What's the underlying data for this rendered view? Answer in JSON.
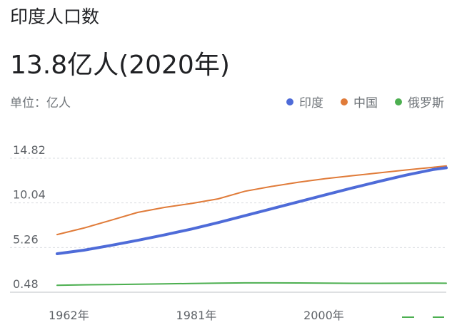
{
  "title": "印度人口数",
  "headline": "13.8亿人(2020年)",
  "unit_label": "单位：亿人",
  "chart_data": {
    "type": "line",
    "x": [
      1962,
      1966,
      1970,
      1974,
      1978,
      1982,
      1986,
      1990,
      1994,
      1998,
      2002,
      2006,
      2010,
      2014,
      2018,
      2020
    ],
    "series": [
      {
        "name": "印度",
        "color": "#4e6bd8",
        "values": [
          4.6,
          4.98,
          5.49,
          6.03,
          6.61,
          7.24,
          7.93,
          8.67,
          9.42,
          10.16,
          10.91,
          11.64,
          12.34,
          13.01,
          13.61,
          13.8
        ]
      },
      {
        "name": "中国",
        "color": "#e07b39",
        "values": [
          6.65,
          7.35,
          8.18,
          9.02,
          9.56,
          9.98,
          10.47,
          11.29,
          11.81,
          12.26,
          12.64,
          12.95,
          13.26,
          13.56,
          13.84,
          14.0
        ]
      },
      {
        "name": "俄罗斯",
        "color": "#4caf50",
        "values": [
          1.22,
          1.27,
          1.3,
          1.34,
          1.38,
          1.41,
          1.45,
          1.48,
          1.48,
          1.47,
          1.45,
          1.43,
          1.43,
          1.44,
          1.45,
          1.44
        ]
      }
    ],
    "y_ticks": [
      "14.82",
      "10.04",
      "5.26",
      "0.48"
    ],
    "y_tick_values": [
      14.82,
      10.04,
      5.26,
      0.48
    ],
    "x_ticks": [
      "1962年",
      "1981年",
      "2000年"
    ],
    "x_tick_values": [
      1962,
      1981,
      2000
    ],
    "ylim": [
      0.48,
      14.82
    ],
    "xlim": [
      1962,
      2020
    ],
    "grid": true,
    "legend_position": "top-right"
  }
}
